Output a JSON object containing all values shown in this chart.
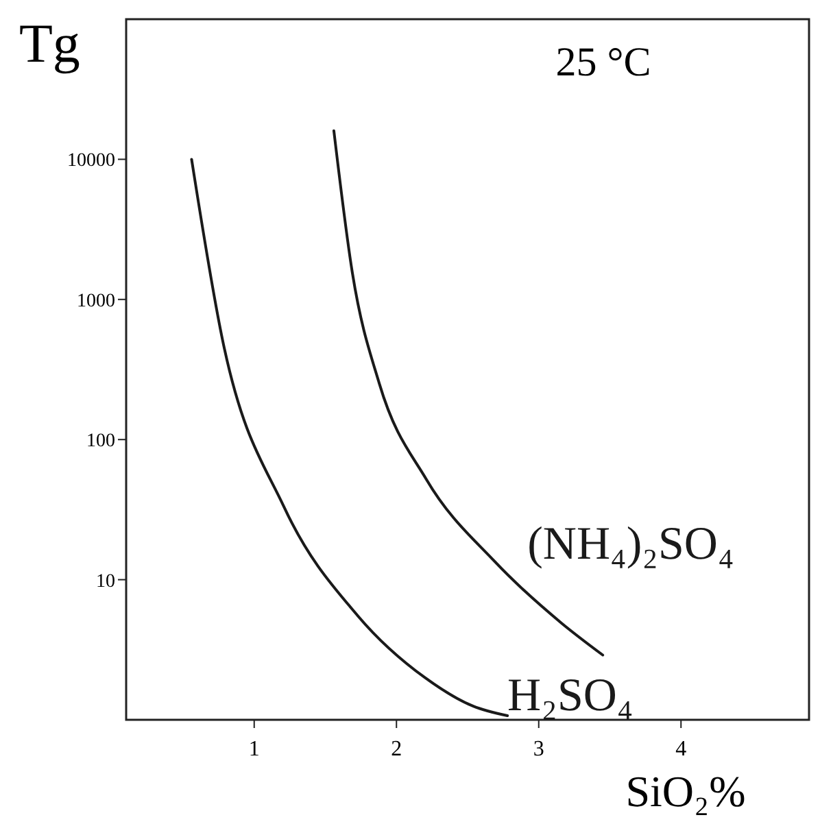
{
  "chart_data": {
    "type": "line",
    "title": "25 °C",
    "ylabel": "Tg",
    "xlabel": "SiO₂%",
    "log": "y",
    "xlim": [
      0.1,
      4.9
    ],
    "ylim": [
      1,
      100000
    ],
    "xticks": [
      1,
      2,
      3,
      4
    ],
    "yticks": [
      10,
      100,
      1000,
      10000
    ],
    "grid": false,
    "marker": "none",
    "line_style": "solid",
    "series": [
      {
        "name": "H₂SO₄",
        "color": "#1a1a1a",
        "x": [
          0.56,
          0.78,
          1.21,
          1.73,
          2.2,
          2.54,
          2.78
        ],
        "values": [
          10000,
          500,
          33,
          5.5,
          2,
          1.25,
          1.07
        ]
      },
      {
        "name": "(NH₄)₂SO₄",
        "color": "#1a1a1a",
        "x": [
          1.56,
          1.69,
          1.88,
          2.21,
          2.69,
          3.16,
          3.45
        ],
        "values": [
          16000,
          1550,
          250,
          52,
          13.5,
          4.9,
          2.9
        ]
      }
    ]
  }
}
